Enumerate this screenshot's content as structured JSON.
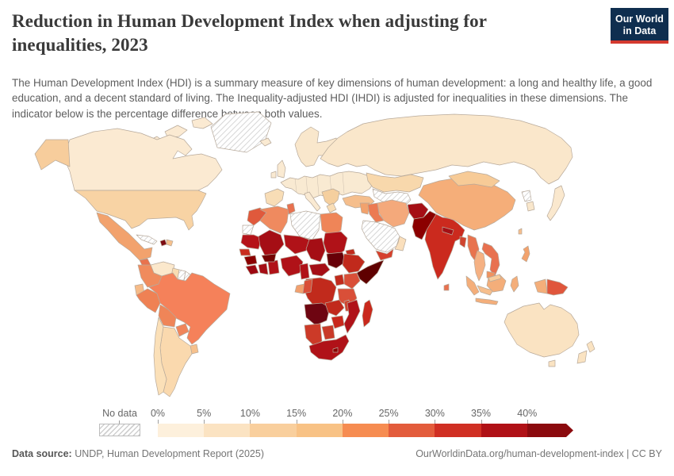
{
  "header": {
    "title": "Reduction in Human Development Index when adjusting for inequalities, 2023",
    "subtitle": "The Human Development Index (HDI) is a summary measure of key dimensions of human development: a long and healthy life, a good education, and a decent standard of living. The Inequality-adjusted HDI (IHDI) is adjusted for inequalities in these dimensions. The indicator below is the percentage difference between both values.",
    "logo": {
      "line1": "Our World",
      "line2": "in Data",
      "bg": "#0f2e4f",
      "accent": "#d4392f"
    }
  },
  "legend": {
    "no_data_label": "No data",
    "ticks": [
      "0%",
      "5%",
      "10%",
      "15%",
      "20%",
      "25%",
      "30%",
      "35%",
      "40%"
    ],
    "bin_colors": [
      "#fdf0dc",
      "#fbe3c2",
      "#f9cf9d",
      "#f8c285",
      "#f68c51",
      "#e35c3c",
      "#d02f23",
      "#b01116",
      "#8b0a0e"
    ]
  },
  "footer": {
    "datasource_label": "Data source:",
    "datasource_value": " UNDP, Human Development Report (2025)",
    "link": "OurWorldinData.org/human-development-index | CC BY"
  },
  "map": {
    "border_color": "#b7a99a",
    "hatch_line_color": "#cccccc",
    "hatched_regions": [
      "greenland",
      "cuba",
      "suriname",
      "frenchguiana",
      "libya",
      "westernsahara",
      "saudiarabia",
      "centralasia",
      "northkorea"
    ],
    "region_colors": {
      "alaska": "#f7cd9c",
      "canada": "#fbead2",
      "arctic1": "#fbead2",
      "arctic2": "#fbead2",
      "arctic3": "#fbead2",
      "usa": "#f8d3a4",
      "mexico": "#f2a26d",
      "guatemala": "#e8734e",
      "centralamerica": "#f0935f",
      "haiti": "#7d0b12",
      "dominican": "#f6c18d",
      "venezuela": "#fbe8cc",
      "guyana": "#f9dcb2",
      "colombia": "#f08b5d",
      "ecuador": "#f6bb88",
      "peru": "#ef8154",
      "brazil": "#f5815a",
      "bolivia": "#ef8558",
      "paraguay": "#f0855b",
      "uruguay": "#f6c18d",
      "argentina": "#fad9ae",
      "chile": "#fbe0b8",
      "iceland": "#faead2",
      "uk": "#faead2",
      "ireland": "#faead2",
      "scandinavia": "#f9e7cc",
      "europe": "#f9ead2",
      "iberia": "#f8ddb6",
      "italy": "#faead2",
      "balkans": "#f5cf9e",
      "greece": "#f8ddb6",
      "turkey": "#f5be8c",
      "russia": "#fae7cb",
      "kazakhstan": "#f8d8ac",
      "iran": "#f4a97b",
      "iraq": "#ec7a52",
      "levant": "#f2a26d",
      "yemen": "#d6402c",
      "oman": "#fadfbc",
      "afghanistan": "#a50f15",
      "pakistan": "#8b0000",
      "india": "#cb2a1e",
      "nepal": "#a50f15",
      "bangladesh": "#d0452f",
      "srilanka": "#e8714f",
      "myanmar": "#e8734e",
      "thailand": "#f5b183",
      "indochina": "#e8714f",
      "cambodia": "#f0935f",
      "malaysia": "#f6be8c",
      "china": "#f5ae79",
      "mongolia": "#f7cb97",
      "southkorea": "#f9e7cc",
      "japan": "#fae8ce",
      "taiwan": "#f6be8c",
      "philippines": "#f2a26d",
      "sumatra": "#f4ae7a",
      "java": "#f4ae7a",
      "borneo": "#f4ae7a",
      "borneomy": "#f8cd9c",
      "sulawesi": "#f4ae7a",
      "wnewguinea": "#f4ae7a",
      "png": "#e0563c",
      "australia": "#fae3c2",
      "tasmania": "#fae3c2",
      "nz_north": "#fae3c2",
      "nz_south": "#fae3c2",
      "morocco": "#e0593c",
      "algeria": "#ef8a5f",
      "tunisia": "#e8714f",
      "egypt": "#ef8558",
      "mauritania": "#b51218",
      "mali": "#a50e15",
      "niger": "#b01218",
      "chad": "#a50e15",
      "sudan": "#b01218",
      "eritrea": "#c12a1c",
      "senegal": "#c92c1e",
      "guinea": "#8b0000",
      "sierraleone": "#9c0710",
      "ivorycoast": "#a50e15",
      "ghana": "#b01218",
      "burkina": "#730303",
      "nigeria": "#b01218",
      "cameroon": "#b01218",
      "car": "#a50e15",
      "southsudan": "#670008",
      "ethiopia": "#c12a1c",
      "somalia": "#5f0000",
      "kenya": "#d94f38",
      "uganda": "#c12a1c",
      "drc": "#c12a1c",
      "gabon": "#f2a06e",
      "congo": "#d94f38",
      "tanzania": "#d94f38",
      "angola": "#6e0511",
      "zambia": "#c12a1c",
      "malawi": "#d0452f",
      "mozambique": "#b01218",
      "zimbabwe": "#c9281c",
      "namibia": "#cc3a28",
      "botswana": "#c93a28",
      "southafrica": "#b01218",
      "lesotho": "#8b0000",
      "madagascar": "#c9281c"
    }
  },
  "chart_data": {
    "type": "heatmap",
    "subtype": "choropleth-world-map",
    "title": "Reduction in Human Development Index when adjusting for inequalities, 2023",
    "unit": "%",
    "legend_position": "bottom",
    "bins": [
      "0-5%",
      "5-10%",
      "10-15%",
      "15-20%",
      "20-25%",
      "25-30%",
      "30-35%",
      "35-40%",
      "40%+"
    ],
    "bin_colors": [
      "#fdf0dc",
      "#fbe3c2",
      "#f9cf9d",
      "#f8c285",
      "#f68c51",
      "#e35c3c",
      "#d02f23",
      "#b01116",
      "#8b0a0e"
    ],
    "no_data_countries": [
      "Greenland",
      "Cuba",
      "Suriname",
      "French Guiana",
      "Libya",
      "Western Sahara",
      "Saudi Arabia",
      "Turkmenistan",
      "North Korea"
    ],
    "readings_by_country_bin": {
      "Canada": "5-10%",
      "United States": "10-15%",
      "Mexico": "20-25%",
      "Guatemala": "25-30%",
      "Haiti": "40%+",
      "Dominican Republic": "15-20%",
      "Venezuela": "5-10%",
      "Colombia": "20-25%",
      "Ecuador": "15-20%",
      "Peru": "20-25%",
      "Brazil": "20-25%",
      "Bolivia": "20-25%",
      "Paraguay": "20-25%",
      "Chile": "10-15%",
      "Argentina": "10-15%",
      "Uruguay": "10-15%",
      "Western Europe": "5-10%",
      "Spain and Portugal": "10-15%",
      "Balkans": "10-15%",
      "Turkey": "15-20%",
      "Russia": "5-10%",
      "Kazakhstan": "10-15%",
      "China": "15-20%",
      "Mongolia": "10-15%",
      "Japan": "5-10%",
      "South Korea": "5-10%",
      "Iran": "15-20%",
      "Iraq": "25-30%",
      "Yemen": "30-35%",
      "Oman": "5-10%",
      "Afghanistan": "35-40%",
      "Pakistan": "40%+",
      "India": "30-35%",
      "Nepal": "35-40%",
      "Bangladesh": "30-35%",
      "Sri Lanka": "25-30%",
      "Myanmar": "25-30%",
      "Thailand": "15-20%",
      "Laos": "25-30%",
      "Cambodia": "20-25%",
      "Malaysia": "15-20%",
      "Indonesia": "15-20%",
      "Philippines": "20-25%",
      "Papua New Guinea": "25-30%",
      "Australia": "5-10%",
      "New Zealand": "5-10%",
      "Morocco": "25-30%",
      "Algeria": "20-25%",
      "Tunisia": "25-30%",
      "Egypt": "25-30%",
      "Mauritania": "35-40%",
      "Mali": "35-40%",
      "Niger": "35-40%",
      "Chad": "35-40%",
      "Sudan": "35-40%",
      "Senegal": "30-35%",
      "Guinea": "40%+",
      "Burkina Faso": "40%+",
      "Nigeria": "35-40%",
      "Ghana": "30-35%",
      "Cote d'Ivoire": "35-40%",
      "Cameroon": "35-40%",
      "Central African Republic": "40%+",
      "South Sudan": "40%+",
      "Ethiopia": "30-35%",
      "Somalia": "40%+",
      "Kenya": "25-30%",
      "Uganda": "30-35%",
      "DR Congo": "30-35%",
      "Gabon": "20-25%",
      "Congo": "25-30%",
      "Tanzania": "25-30%",
      "Angola": "40%+",
      "Zambia": "30-35%",
      "Malawi": "30-35%",
      "Mozambique": "35-40%",
      "Zimbabwe": "30-35%",
      "Namibia": "30-35%",
      "Botswana": "30-35%",
      "South Africa": "35-40%",
      "Madagascar": "30-35%"
    }
  }
}
